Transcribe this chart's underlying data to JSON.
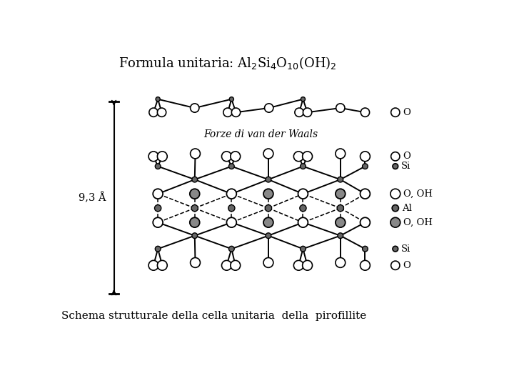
{
  "bg_color": "#ffffff",
  "title_text": "Formula unitaria: Al$_2$Si$_4$O$_{10}$(OH)$_2$",
  "subtitle_text": "Schema strutturale della cella unitaria  della  pirofillite",
  "vdw_text": "Forze di van der Waals",
  "dim_text": "9,3 Å",
  "gray_fill": "#888888",
  "dark_node": "#666666",
  "lw_main": 1.4,
  "lw_dash": 1.1,
  "r_large": 10,
  "r_small": 5,
  "r_oh": 11
}
